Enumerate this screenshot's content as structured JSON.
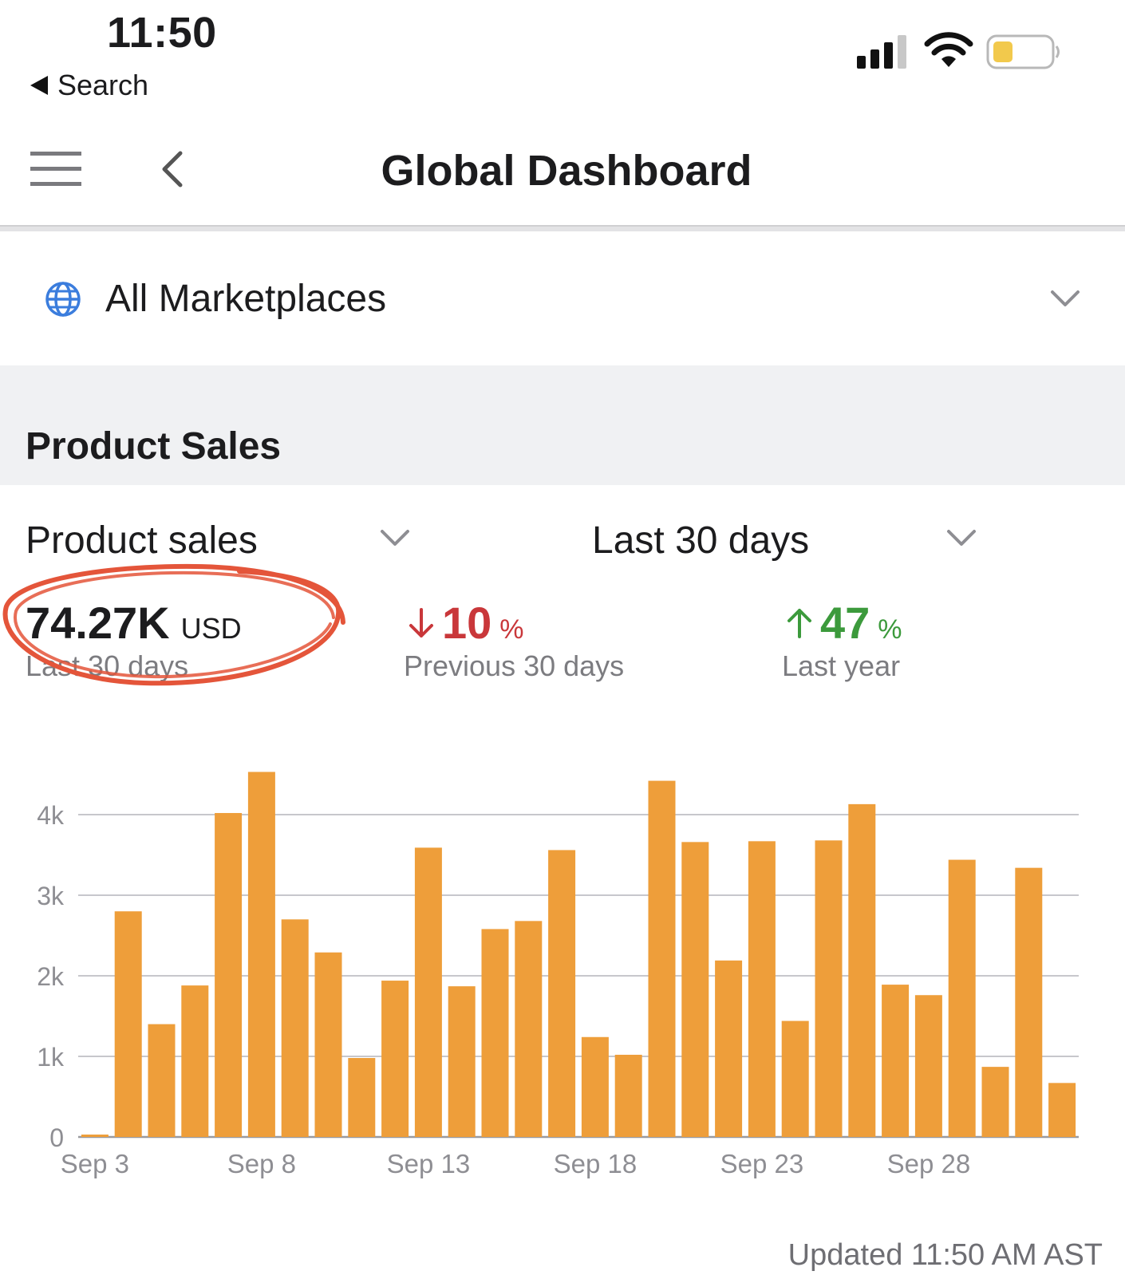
{
  "status_bar": {
    "time": "11:50",
    "back_label": "Search",
    "icons": [
      "signal-icon",
      "wifi-icon",
      "battery-icon"
    ]
  },
  "nav": {
    "title": "Global Dashboard",
    "icons": [
      "menu-icon",
      "back-chevron-icon"
    ]
  },
  "marketplace": {
    "label": "All Marketplaces",
    "icon": "globe-icon"
  },
  "section": {
    "title": "Product Sales"
  },
  "selectors": {
    "metric": "Product sales",
    "period": "Last 30 days"
  },
  "kpis": {
    "main_value": "74.27K",
    "main_unit": "USD",
    "main_caption": "Last 30 days",
    "prev_value": "10",
    "prev_unit": "%",
    "prev_caption": "Previous 30 days",
    "prev_direction": "down",
    "year_value": "47",
    "year_unit": "%",
    "year_caption": "Last year",
    "year_direction": "up"
  },
  "colors": {
    "bar": "#EE9E3A",
    "down": "#c9373a",
    "up": "#3c9a3c",
    "annotation": "#e4553a"
  },
  "chart_data": {
    "type": "bar",
    "x": [
      "Sep 3",
      "Sep 4",
      "Sep 5",
      "Sep 6",
      "Sep 7",
      "Sep 8",
      "Sep 9",
      "Sep 10",
      "Sep 11",
      "Sep 12",
      "Sep 13",
      "Sep 14",
      "Sep 15",
      "Sep 16",
      "Sep 17",
      "Sep 18",
      "Sep 19",
      "Sep 20",
      "Sep 21",
      "Sep 22",
      "Sep 23",
      "Sep 24",
      "Sep 25",
      "Sep 26",
      "Sep 27",
      "Sep 28",
      "Sep 29",
      "Sep 30",
      "Oct 1",
      "Oct 2"
    ],
    "values": [
      30,
      2800,
      1400,
      1880,
      4020,
      4530,
      2700,
      2290,
      980,
      1940,
      3590,
      1870,
      2580,
      2680,
      3560,
      1240,
      1020,
      4420,
      3660,
      2190,
      3670,
      1440,
      3680,
      4130,
      1890,
      1760,
      3440,
      870,
      3340,
      670
    ],
    "x_tick_labels": [
      "Sep 3",
      "Sep 8",
      "Sep 13",
      "Sep 18",
      "Sep 23",
      "Sep 28"
    ],
    "y_tick_labels": [
      "0",
      "1k",
      "2k",
      "3k",
      "4k"
    ],
    "y_ticks": [
      0,
      1000,
      2000,
      3000,
      4000
    ],
    "ylim": [
      0,
      4530
    ],
    "grid": true
  },
  "footer": {
    "updated": "Updated 11:50 AM AST"
  }
}
